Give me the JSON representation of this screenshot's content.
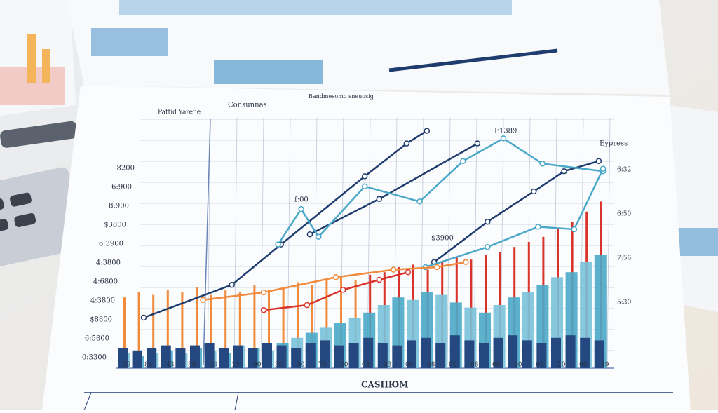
{
  "scene": {
    "header_left": "Pattid Yarene",
    "header_mid": "Consunnas",
    "header_right": "Bandmesomo sneuosig",
    "title": "CASHЮM",
    "y_labels": [
      "8200",
      "6:900",
      "8:900",
      "$3800",
      "6:3900",
      "4:3800",
      "4:6800",
      "4:3800",
      "$8800",
      "6:5800",
      "0:3300"
    ],
    "x_labels": [
      "29",
      "8¢",
      "43",
      "88",
      "29",
      "10",
      "00",
      "30",
      "00",
      "76",
      "20",
      "04",
      "03",
      "00",
      "08",
      "80",
      "08",
      "09",
      "80",
      "08",
      "20",
      "00",
      "49"
    ],
    "right_labels": [
      "6:32",
      "6:50",
      "7:56",
      "5:30"
    ],
    "callouts": [
      "f:00",
      "$3900",
      "Eypress",
      "F1389"
    ],
    "dark_bars": [
      8,
      7,
      8,
      9,
      8,
      9,
      10,
      8,
      9,
      8,
      10,
      9,
      8,
      10,
      11,
      9,
      10,
      12,
      10,
      9,
      11,
      12,
      10,
      13,
      11,
      10,
      12,
      13,
      11,
      10,
      12,
      13,
      12,
      11
    ],
    "teal_bars": [
      6,
      5,
      6,
      7,
      6,
      8,
      7,
      6,
      9,
      8,
      7,
      10,
      12,
      14,
      16,
      18,
      20,
      22,
      25,
      28,
      27,
      30,
      29,
      26,
      24,
      22,
      25,
      28,
      30,
      33,
      36,
      38,
      42,
      45
    ],
    "spikes": [
      28,
      30,
      29,
      31,
      30,
      32,
      29,
      31,
      30,
      33,
      31,
      32,
      34,
      33,
      35,
      36,
      35,
      37,
      38,
      40,
      41,
      39,
      42,
      44,
      43,
      45,
      46,
      48,
      50,
      52,
      55,
      58,
      62,
      66
    ],
    "lines": [
      {
        "color": "#1f3c6e",
        "x": [
          1.7,
          7.8,
          11.2,
          17,
          19.9,
          21.3
        ],
        "y": [
          20,
          33,
          49,
          76,
          89,
          94
        ]
      },
      {
        "color": "#1f3c6e",
        "x": [
          13.2,
          18,
          24.8
        ],
        "y": [
          53,
          67,
          89
        ]
      },
      {
        "color": "#1f3c6e",
        "x": [
          21.8,
          25.5,
          28.7,
          30.8,
          33.2
        ],
        "y": [
          42,
          58,
          70,
          78,
          82
        ]
      },
      {
        "color": "#4aa8c8",
        "x": [
          11,
          12.6,
          13.8,
          17,
          20.8,
          23.8,
          26.6,
          29.3,
          33.5
        ],
        "y": [
          49,
          63,
          52,
          72,
          66,
          82,
          91,
          81,
          78
        ]
      },
      {
        "color": "#4aa8c8",
        "x": [
          21.2,
          25.5,
          29,
          31.5,
          33.5
        ],
        "y": [
          40,
          48,
          56,
          55,
          79
        ]
      },
      {
        "color": "#f08a3c",
        "x": [
          5.8,
          10,
          15,
          19,
          22,
          24
        ],
        "y": [
          27,
          30,
          36,
          39,
          40,
          42
        ]
      },
      {
        "color": "#d9342b",
        "x": [
          10,
          13,
          15.5,
          18,
          20
        ],
        "y": [
          23,
          25,
          31,
          35,
          38
        ]
      }
    ]
  }
}
